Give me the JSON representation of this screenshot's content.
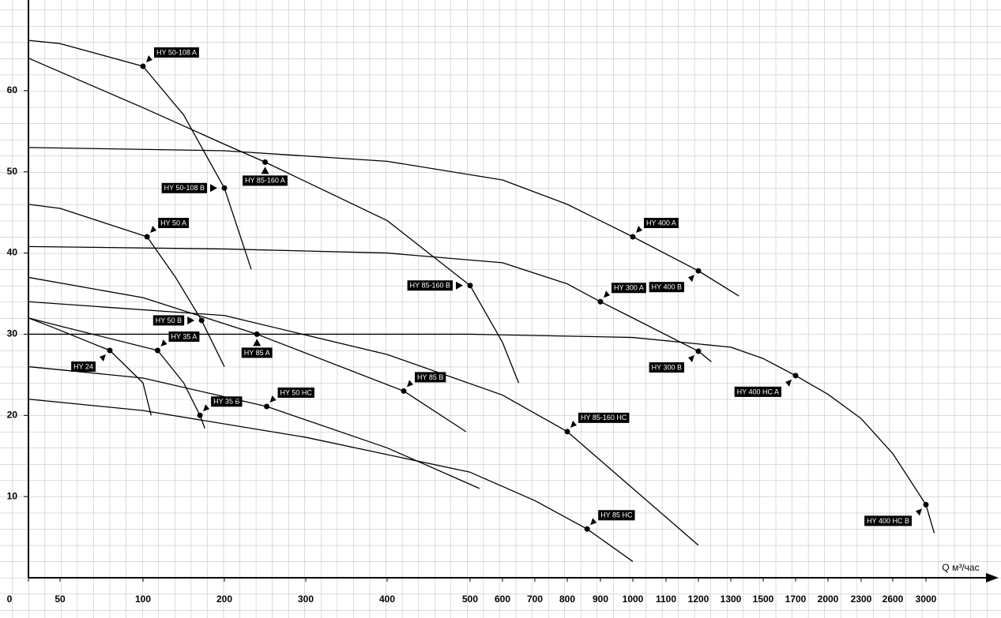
{
  "chart_data": {
    "type": "line",
    "x_label": "Q м³/час",
    "xticks": [
      0,
      50,
      100,
      200,
      300,
      400,
      500,
      600,
      700,
      800,
      900,
      1000,
      1100,
      1200,
      1300,
      1500,
      1700,
      2000,
      2300,
      2600,
      3000
    ],
    "ylim": [
      0,
      70
    ],
    "yticks": [
      10,
      20,
      30,
      40,
      50,
      60
    ],
    "grid": true,
    "color": "#000000",
    "series": [
      {
        "x": [
          0,
          50,
          100,
          150,
          200,
          233
        ],
        "values": [
          66.2,
          65.8,
          63,
          57,
          48,
          38
        ],
        "labels": [
          null,
          null,
          "HY 50-108 A",
          null,
          "HY 50-108 B",
          null
        ]
      },
      {
        "x": [
          0,
          100,
          200,
          250,
          400,
          500,
          600,
          650
        ],
        "values": [
          64,
          57.9,
          53.4,
          51.2,
          44,
          36,
          29,
          24
        ],
        "labels": [
          null,
          null,
          null,
          "HY 85-160 A",
          null,
          "HY 85-160 B",
          null,
          null
        ]
      },
      {
        "x": [
          0,
          200,
          400,
          600,
          800,
          1000,
          1200,
          1350
        ],
        "values": [
          53,
          52.6,
          51.3,
          49,
          46,
          42,
          37.8,
          34.7
        ],
        "labels": [
          null,
          null,
          null,
          null,
          null,
          "HY 400 A",
          "HY 400 B",
          null
        ]
      },
      {
        "x": [
          0,
          200,
          400,
          600,
          800,
          900,
          1000,
          1200,
          1240
        ],
        "values": [
          40.8,
          40.5,
          40,
          38.8,
          36.2,
          34,
          32,
          27.9,
          26.6
        ],
        "labels": [
          null,
          null,
          null,
          null,
          null,
          "HY 300 A",
          null,
          "HY 300 B",
          null
        ]
      },
      {
        "x": [
          0,
          500,
          1000,
          1300,
          1500,
          1700,
          2000,
          2300,
          2600,
          3000,
          3100
        ],
        "values": [
          30,
          30,
          29.6,
          28.4,
          27,
          24.9,
          22.6,
          19.6,
          15.3,
          9,
          5.5
        ],
        "labels": [
          null,
          null,
          null,
          null,
          null,
          "HY 400 HC A",
          null,
          null,
          null,
          "HY 400 HC B",
          null
        ]
      },
      {
        "x": [
          0,
          50,
          105,
          140,
          172,
          200
        ],
        "values": [
          46,
          45.5,
          42,
          37,
          31.7,
          26
        ],
        "labels": [
          null,
          null,
          "HY 50 A",
          null,
          "HY 50 B",
          null
        ]
      },
      {
        "x": [
          0,
          100,
          240,
          420,
          495
        ],
        "values": [
          37,
          34.5,
          30,
          23,
          18
        ],
        "labels": [
          null,
          null,
          "HY 85 A",
          "HY 85 B",
          null
        ]
      },
      {
        "x": [
          0,
          200,
          400,
          600,
          800,
          1000,
          1200
        ],
        "values": [
          34,
          32.3,
          27.5,
          22.5,
          18,
          11,
          4
        ],
        "labels": [
          null,
          null,
          null,
          null,
          "HY 85-160 HC",
          null,
          null
        ]
      },
      {
        "x": [
          0,
          40,
          80,
          100,
          110
        ],
        "values": [
          32,
          30.8,
          28,
          24,
          20
        ],
        "labels": [
          null,
          null,
          "HY 24",
          null,
          null
        ]
      },
      {
        "x": [
          0,
          50,
          118,
          150,
          170,
          176
        ],
        "values": [
          32,
          31,
          28,
          24,
          20,
          18.4
        ],
        "labels": [
          null,
          null,
          "HY 35 A",
          null,
          "HY 35 B",
          null
        ]
      },
      {
        "x": [
          0,
          100,
          252,
          400,
          529
        ],
        "values": [
          26,
          24.6,
          21.1,
          16,
          11
        ],
        "labels": [
          null,
          null,
          "HY 50 HC",
          null,
          null
        ]
      },
      {
        "x": [
          0,
          100,
          300,
          500,
          700,
          860,
          1000
        ],
        "values": [
          22,
          20.6,
          17.3,
          13,
          9.5,
          6,
          2
        ],
        "labels": [
          null,
          null,
          null,
          null,
          null,
          "HY 85 HC",
          null
        ]
      }
    ]
  }
}
